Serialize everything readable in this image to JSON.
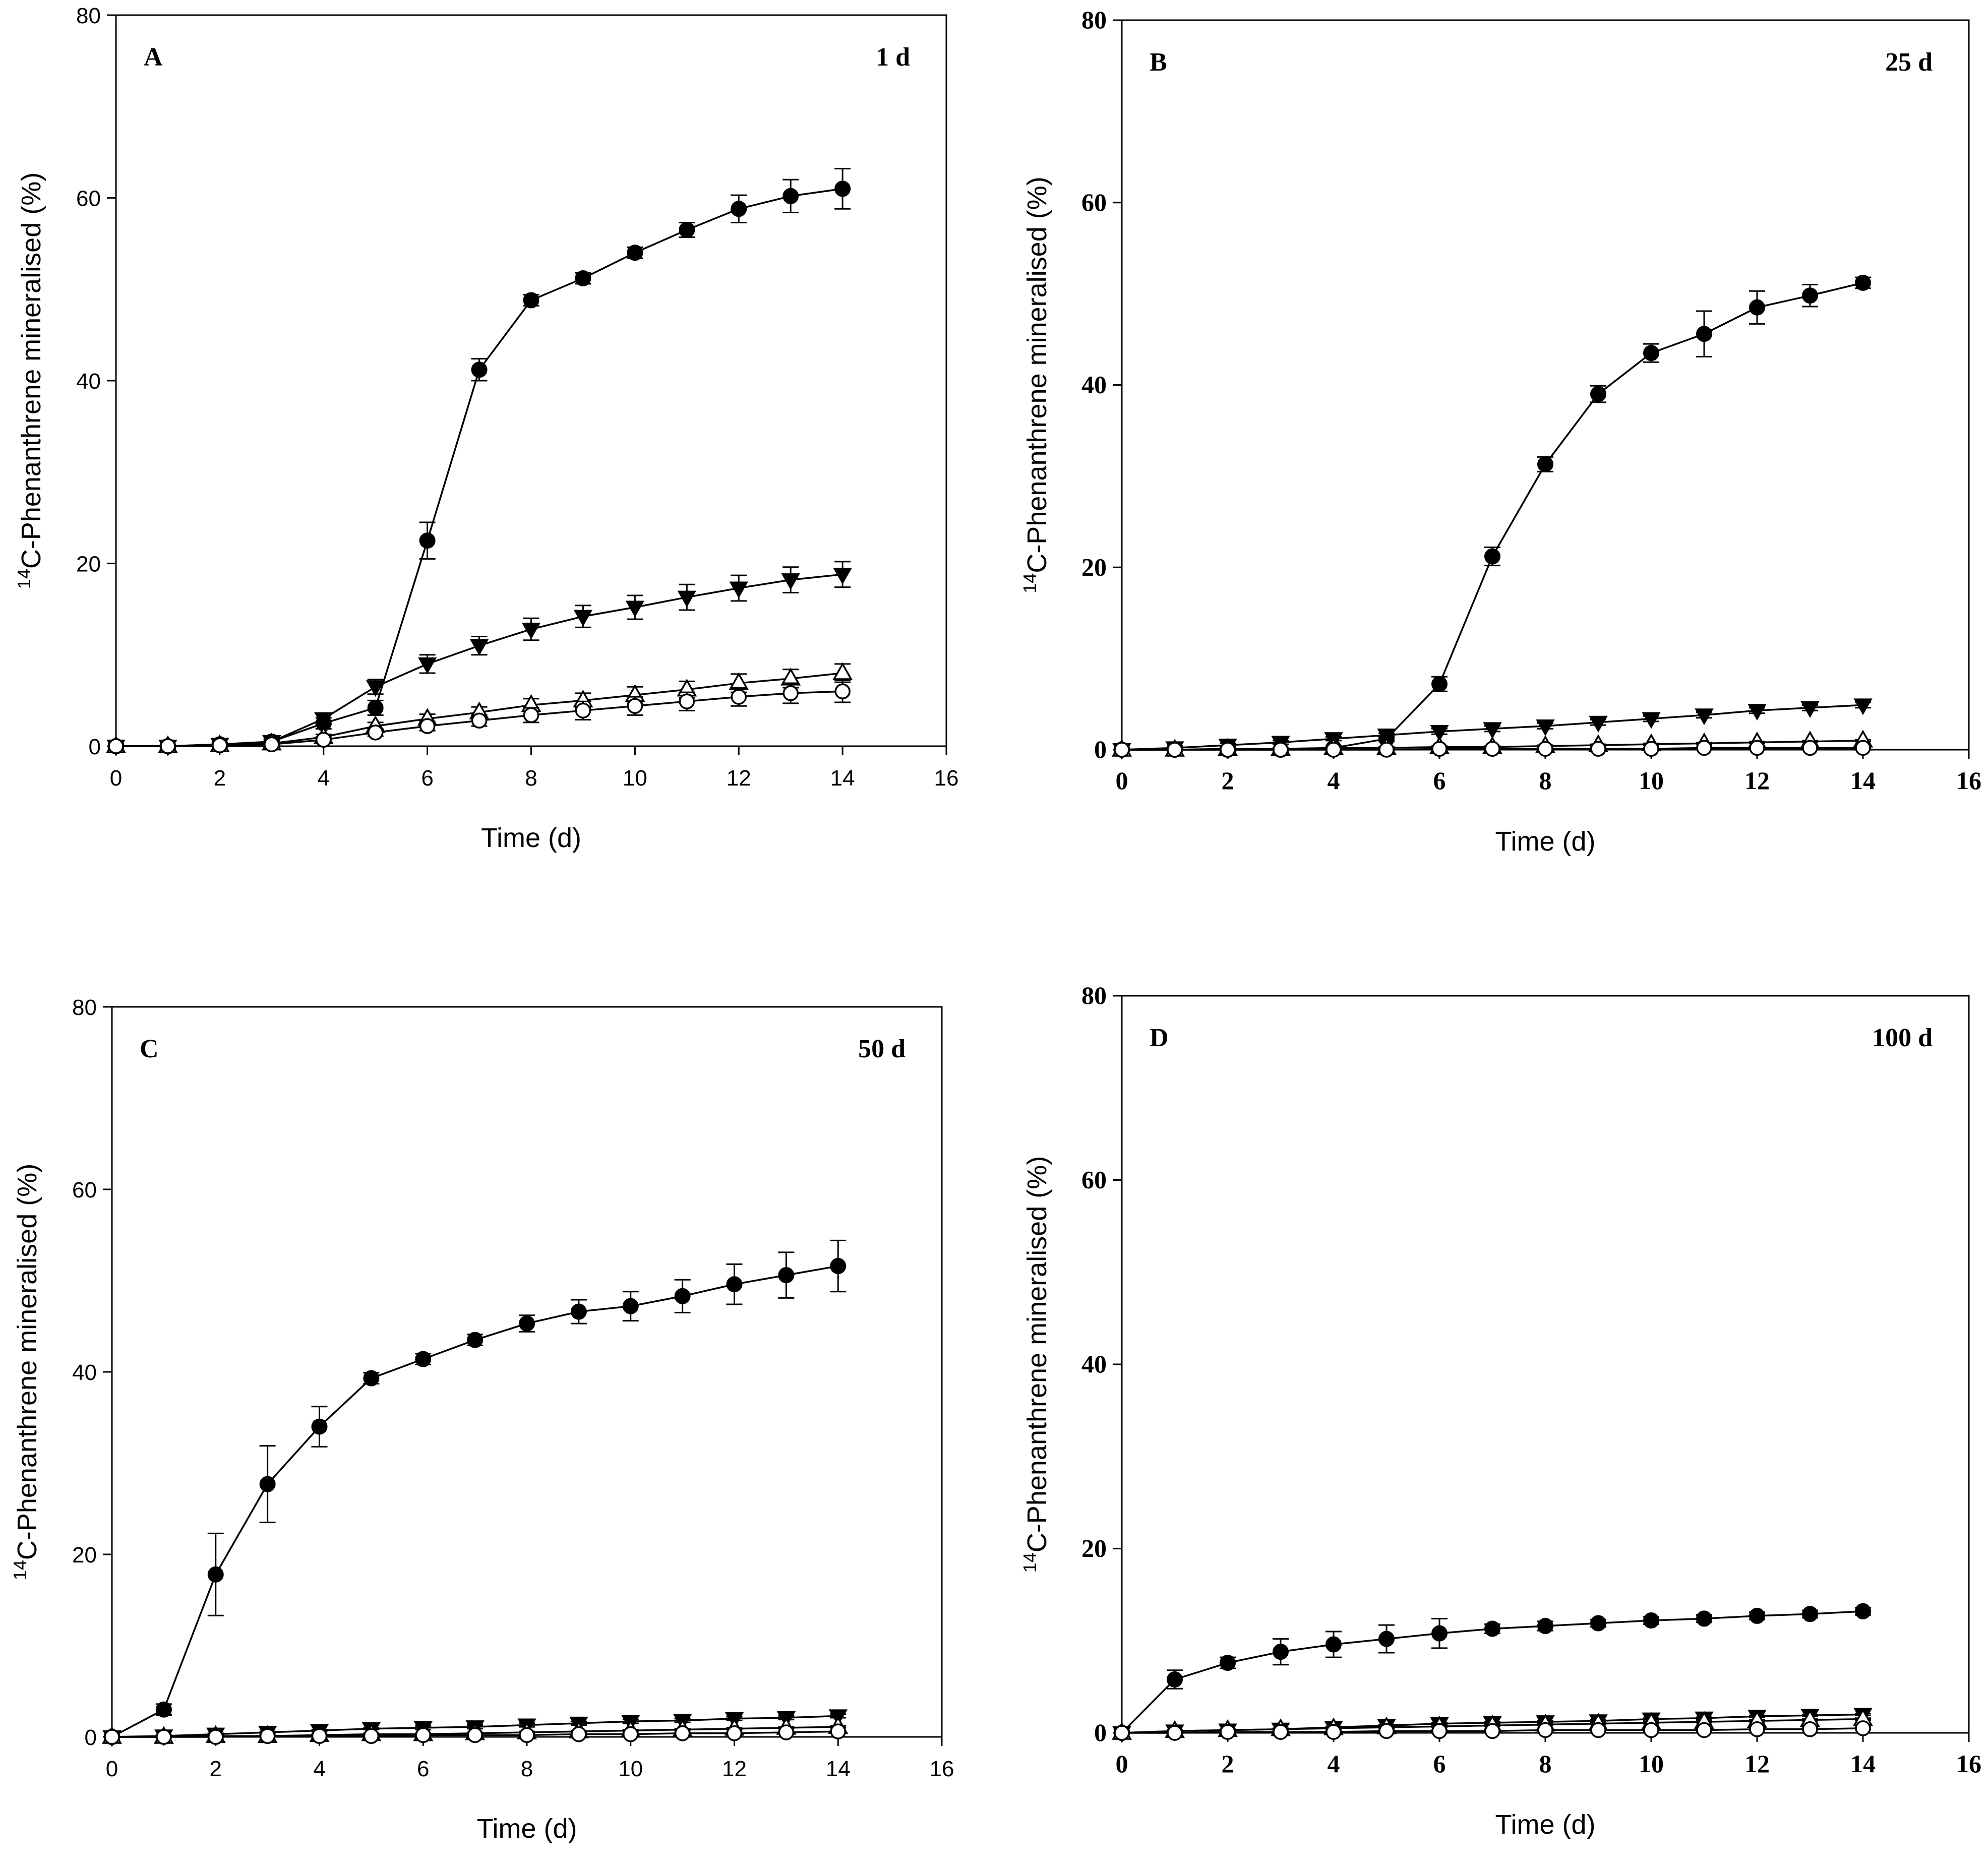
{
  "chart_data": [
    {
      "type": "line",
      "panel_label": "A",
      "annotation": "1 d",
      "xlabel": "Time (d)",
      "ylabel_sup": "14",
      "ylabel": "C-Phenanthrene mineralised (%)",
      "xlim": [
        0,
        16
      ],
      "ylim": [
        0,
        80
      ],
      "xticks": [
        "0",
        "2",
        "4",
        "6",
        "8",
        "10",
        "12",
        "14",
        "16"
      ],
      "yticks": [
        "0",
        "20",
        "40",
        "60",
        "80"
      ],
      "tick_style": "normal",
      "x": [
        0,
        1,
        2,
        3,
        4,
        5,
        6,
        7,
        8,
        9,
        10,
        11,
        12,
        13,
        14
      ],
      "series": [
        {
          "name": "filled circle",
          "marker": "circle-filled",
          "values": [
            0,
            0,
            0.2,
            0.5,
            2.5,
            4.2,
            22.5,
            41.2,
            48.8,
            51.2,
            54,
            56.5,
            58.8,
            60.2,
            61
          ],
          "errors": [
            0.3,
            0.2,
            0.2,
            0.3,
            0.6,
            0.8,
            2,
            1.2,
            0.6,
            0.6,
            0.6,
            0.8,
            1.5,
            1.8,
            2.2
          ]
        },
        {
          "name": "filled triangle down",
          "marker": "triangle-down-filled",
          "values": [
            0,
            0,
            0.2,
            0.5,
            3,
            6.5,
            9,
            11,
            12.8,
            14.2,
            15.2,
            16.3,
            17.3,
            18.2,
            18.8
          ],
          "errors": [
            0.2,
            0.2,
            0.2,
            0.2,
            0.6,
            0.8,
            1,
            1,
            1.2,
            1.2,
            1.3,
            1.4,
            1.4,
            1.4,
            1.4
          ]
        },
        {
          "name": "open triangle up",
          "marker": "triangle-up-open",
          "values": [
            0,
            0,
            0.1,
            0.3,
            1,
            2.2,
            3,
            3.7,
            4.5,
            5,
            5.6,
            6.2,
            6.9,
            7.4,
            8
          ],
          "errors": [
            0.2,
            0.2,
            0.2,
            0.2,
            0.3,
            0.4,
            0.5,
            0.6,
            0.7,
            0.8,
            0.9,
            0.9,
            1,
            1,
            1
          ]
        },
        {
          "name": "open circle",
          "marker": "circle-open",
          "values": [
            0,
            0,
            0.1,
            0.2,
            0.7,
            1.5,
            2.2,
            2.8,
            3.4,
            3.9,
            4.4,
            4.9,
            5.4,
            5.8,
            6
          ],
          "errors": [
            0.2,
            0.2,
            0.2,
            0.2,
            0.3,
            0.4,
            0.5,
            0.6,
            0.8,
            1,
            1,
            1,
            1,
            1.1,
            1.2
          ]
        }
      ]
    },
    {
      "type": "line",
      "panel_label": "B",
      "annotation": "25 d",
      "xlabel": "Time (d)",
      "ylabel_sup": "14",
      "ylabel": "C-Phenanthrene mineralised (%)",
      "xlim": [
        0,
        16
      ],
      "ylim": [
        0,
        80
      ],
      "xticks": [
        "0",
        "2",
        "4",
        "6",
        "8",
        "10",
        "12",
        "14",
        "16"
      ],
      "yticks": [
        "0",
        "20",
        "40",
        "60",
        "80"
      ],
      "tick_style": "bold",
      "x": [
        0,
        1,
        2,
        3,
        4,
        5,
        6,
        7,
        8,
        9,
        10,
        11,
        12,
        13,
        14
      ],
      "series": [
        {
          "name": "filled circle",
          "marker": "circle-filled",
          "values": [
            0,
            0,
            0,
            0,
            0.2,
            1.2,
            7.2,
            21.2,
            31.3,
            39,
            43.5,
            45.6,
            48.5,
            49.8,
            51.2
          ],
          "errors": [
            0.2,
            0.2,
            0.2,
            0.2,
            0.2,
            0.3,
            0.8,
            1,
            0.8,
            0.9,
            1,
            2.5,
            1.8,
            1.2,
            0.6
          ]
        },
        {
          "name": "filled triangle down",
          "marker": "triangle-down-filled",
          "values": [
            0,
            0.2,
            0.5,
            0.8,
            1.2,
            1.6,
            2,
            2.3,
            2.6,
            3,
            3.4,
            3.8,
            4.3,
            4.6,
            4.9
          ],
          "errors": [
            0.1,
            0.2,
            0.2,
            0.2,
            0.2,
            0.2,
            0.3,
            0.3,
            0.3,
            0.3,
            0.3,
            0.3,
            0.3,
            0.3,
            0.3
          ]
        },
        {
          "name": "open triangle up",
          "marker": "triangle-up-open",
          "values": [
            0,
            0,
            0.1,
            0.1,
            0.2,
            0.2,
            0.3,
            0.3,
            0.4,
            0.5,
            0.6,
            0.7,
            0.8,
            0.9,
            1
          ],
          "errors": [
            0.1,
            0.1,
            0.1,
            0.1,
            0.1,
            0.1,
            0.1,
            0.1,
            0.1,
            0.1,
            0.1,
            0.1,
            0.1,
            0.1,
            0.1
          ]
        },
        {
          "name": "open circle",
          "marker": "circle-open",
          "values": [
            0,
            0,
            0,
            0,
            0,
            0,
            0.1,
            0.1,
            0.1,
            0.1,
            0.1,
            0.2,
            0.2,
            0.2,
            0.2
          ],
          "errors": [
            0.1,
            0.1,
            0.1,
            0.1,
            0.1,
            0.1,
            0.1,
            0.1,
            0.1,
            0.1,
            0.1,
            0.1,
            0.1,
            0.1,
            0.1
          ]
        }
      ]
    },
    {
      "type": "line",
      "panel_label": "C",
      "annotation": "50 d",
      "xlabel": "Time (d)",
      "ylabel_sup": "14",
      "ylabel": "C-Phenanthrene mineralised (%)",
      "xlim": [
        0,
        16
      ],
      "ylim": [
        0,
        80
      ],
      "xticks": [
        "0",
        "2",
        "4",
        "6",
        "8",
        "10",
        "12",
        "14",
        "16"
      ],
      "yticks": [
        "0",
        "20",
        "40",
        "60",
        "80"
      ],
      "tick_style": "normal",
      "x": [
        0,
        1,
        2,
        3,
        4,
        5,
        6,
        7,
        8,
        9,
        10,
        11,
        12,
        13,
        14
      ],
      "series": [
        {
          "name": "filled circle",
          "marker": "circle-filled",
          "values": [
            0,
            3,
            17.8,
            27.7,
            34,
            39.3,
            41.4,
            43.5,
            45.3,
            46.6,
            47.2,
            48.3,
            49.6,
            50.6,
            51.6
          ],
          "errors": [
            0.2,
            0.6,
            4.5,
            4.2,
            2.2,
            0.6,
            0.6,
            0.6,
            0.9,
            1.3,
            1.6,
            1.8,
            2.2,
            2.5,
            2.8
          ]
        },
        {
          "name": "filled triangle down",
          "marker": "triangle-down-filled",
          "values": [
            0,
            0.1,
            0.3,
            0.5,
            0.7,
            0.9,
            1,
            1.1,
            1.3,
            1.5,
            1.7,
            1.8,
            2,
            2.1,
            2.3
          ],
          "errors": [
            0.1,
            0.1,
            0.1,
            0.1,
            0.1,
            0.1,
            0.2,
            0.2,
            0.2,
            0.2,
            0.2,
            0.2,
            0.2,
            0.2,
            0.2
          ]
        },
        {
          "name": "open triangle up",
          "marker": "triangle-up-open",
          "values": [
            0,
            0,
            0.1,
            0.1,
            0.2,
            0.3,
            0.3,
            0.4,
            0.5,
            0.6,
            0.7,
            0.8,
            0.9,
            1,
            1.1
          ],
          "errors": [
            0.1,
            0.1,
            0.1,
            0.1,
            0.1,
            0.1,
            0.1,
            0.1,
            0.1,
            0.1,
            0.1,
            0.1,
            0.1,
            0.1,
            0.1
          ]
        },
        {
          "name": "open circle",
          "marker": "circle-open",
          "values": [
            0,
            0,
            0,
            0.1,
            0.1,
            0.1,
            0.2,
            0.2,
            0.2,
            0.3,
            0.3,
            0.4,
            0.4,
            0.5,
            0.6
          ],
          "errors": [
            0.1,
            0.1,
            0.1,
            0.1,
            0.1,
            0.1,
            0.1,
            0.1,
            0.1,
            0.1,
            0.1,
            0.1,
            0.1,
            0.1,
            0.1
          ]
        }
      ]
    },
    {
      "type": "line",
      "panel_label": "D",
      "annotation": "100 d",
      "xlabel": "Time (d)",
      "ylabel_sup": "14",
      "ylabel": "C-Phenanthrene mineralised (%)",
      "xlim": [
        0,
        16
      ],
      "ylim": [
        0,
        80
      ],
      "xticks": [
        "0",
        "2",
        "4",
        "6",
        "8",
        "10",
        "12",
        "14",
        "16"
      ],
      "yticks": [
        "0",
        "20",
        "40",
        "60",
        "80"
      ],
      "tick_style": "bold",
      "x": [
        0,
        1,
        2,
        3,
        4,
        5,
        6,
        7,
        8,
        9,
        10,
        11,
        12,
        13,
        14
      ],
      "series": [
        {
          "name": "filled circle",
          "marker": "circle-filled",
          "values": [
            0,
            5.8,
            7.6,
            8.8,
            9.6,
            10.2,
            10.8,
            11.3,
            11.6,
            11.9,
            12.2,
            12.4,
            12.7,
            12.9,
            13.2
          ],
          "errors": [
            0.2,
            1,
            0.6,
            1.4,
            1.4,
            1.5,
            1.6,
            0.5,
            0.5,
            0.4,
            0.4,
            0.4,
            0.4,
            0.4,
            0.4
          ]
        },
        {
          "name": "filled triangle down",
          "marker": "triangle-down-filled",
          "values": [
            0,
            0.2,
            0.3,
            0.4,
            0.6,
            0.8,
            1,
            1.1,
            1.2,
            1.3,
            1.5,
            1.6,
            1.8,
            1.9,
            2
          ],
          "errors": [
            0.1,
            0.1,
            0.1,
            0.1,
            0.1,
            0.1,
            0.1,
            0.1,
            0.1,
            0.1,
            0.1,
            0.1,
            0.1,
            0.1,
            0.1
          ]
        },
        {
          "name": "open triangle up",
          "marker": "triangle-up-open",
          "values": [
            0,
            0.2,
            0.3,
            0.4,
            0.5,
            0.6,
            0.7,
            0.8,
            0.9,
            1,
            1.1,
            1.2,
            1.3,
            1.4,
            1.5
          ],
          "errors": [
            0.1,
            0.1,
            0.1,
            0.1,
            0.1,
            0.1,
            0.1,
            0.1,
            0.1,
            0.1,
            0.1,
            0.1,
            0.1,
            0.1,
            0.1
          ]
        },
        {
          "name": "open circle",
          "marker": "circle-open",
          "values": [
            0,
            0,
            0.1,
            0.1,
            0.1,
            0.2,
            0.2,
            0.2,
            0.3,
            0.3,
            0.3,
            0.3,
            0.4,
            0.4,
            0.5
          ],
          "errors": [
            0.1,
            0.1,
            0.1,
            0.1,
            0.1,
            0.1,
            0.1,
            0.1,
            0.1,
            0.1,
            0.1,
            0.1,
            0.1,
            0.1,
            0.1
          ]
        }
      ]
    }
  ]
}
